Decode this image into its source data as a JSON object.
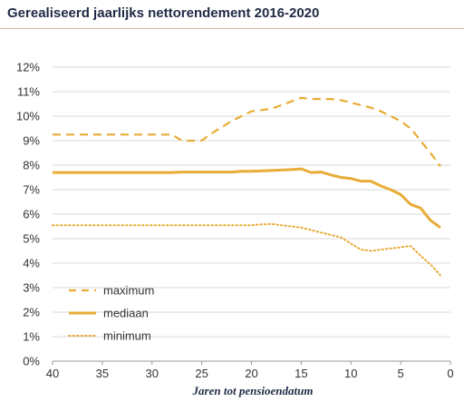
{
  "chart_data": {
    "type": "line",
    "title": "Gerealiseerd jaarlijks nettorendement 2016-2020",
    "xlabel": "Jaren tot pensioendatum",
    "ylabel": "",
    "xlim": [
      40,
      0
    ],
    "ylim": [
      0,
      12
    ],
    "x_ticks": [
      "40",
      "35",
      "30",
      "25",
      "20",
      "15",
      "10",
      "5",
      "0"
    ],
    "y_ticks": [
      "0%",
      "1%",
      "2%",
      "3%",
      "4%",
      "5%",
      "6%",
      "7%",
      "8%",
      "9%",
      "10%",
      "11%",
      "12%"
    ],
    "grid": "horizontal",
    "legend_position": "bottom-left",
    "color": "#e8ac37",
    "series": [
      {
        "name": "maximum",
        "style": "dashed",
        "x": [
          40,
          35,
          30,
          28,
          27,
          25,
          24,
          22,
          21,
          20,
          18,
          17,
          16,
          15,
          14,
          13,
          12,
          11,
          10,
          9,
          8,
          7,
          6,
          5,
          4,
          3,
          2,
          1
        ],
        "values": [
          9.25,
          9.25,
          9.25,
          9.25,
          9.0,
          9.0,
          9.3,
          9.8,
          10.0,
          10.2,
          10.3,
          10.45,
          10.6,
          10.75,
          10.7,
          10.7,
          10.7,
          10.65,
          10.55,
          10.45,
          10.35,
          10.2,
          10.0,
          9.8,
          9.5,
          9.0,
          8.5,
          7.95
        ]
      },
      {
        "name": "mediaan",
        "style": "solid",
        "x": [
          40,
          35,
          30,
          28,
          27,
          25,
          22,
          21,
          20,
          18,
          17,
          16,
          15,
          14,
          13,
          12,
          11,
          10,
          9,
          8,
          7,
          6,
          5,
          4,
          3,
          2,
          1
        ],
        "values": [
          7.7,
          7.7,
          7.7,
          7.7,
          7.72,
          7.72,
          7.72,
          7.75,
          7.75,
          7.78,
          7.8,
          7.82,
          7.85,
          7.7,
          7.72,
          7.6,
          7.5,
          7.45,
          7.35,
          7.35,
          7.15,
          7.0,
          6.8,
          6.4,
          6.25,
          5.75,
          5.45
        ]
      },
      {
        "name": "minimum",
        "style": "dotted",
        "x": [
          40,
          35,
          30,
          25,
          20,
          19,
          18,
          17,
          16,
          15,
          14,
          13,
          12,
          11,
          10,
          9,
          8,
          7,
          6,
          5,
          4,
          3,
          2,
          1
        ],
        "values": [
          5.55,
          5.55,
          5.55,
          5.55,
          5.55,
          5.58,
          5.6,
          5.55,
          5.5,
          5.45,
          5.35,
          5.25,
          5.15,
          5.05,
          4.8,
          4.55,
          4.5,
          4.55,
          4.6,
          4.65,
          4.7,
          4.3,
          3.95,
          3.5
        ]
      }
    ]
  }
}
